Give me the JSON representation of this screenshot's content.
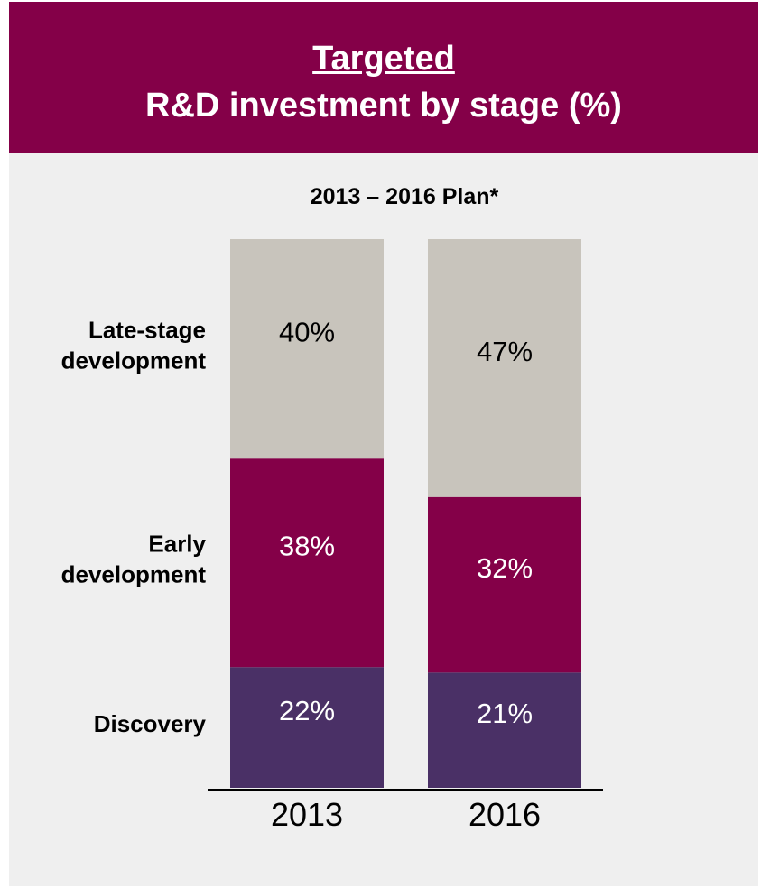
{
  "header": {
    "line1": "Targeted",
    "line2": "R&D investment by stage (%)"
  },
  "colors": {
    "banner": "#840048",
    "panel_background": "#efefef",
    "Discovery": "#4a3066",
    "Early development": "#840048",
    "Late-stage development": "#c8c4bc"
  },
  "chart_data": {
    "type": "bar",
    "stacked": true,
    "title": "2013 – 2016 Plan*",
    "categories": [
      "2013",
      "2016"
    ],
    "ylim": [
      0,
      100
    ],
    "series": [
      {
        "name": "Discovery",
        "label_lines": [
          "Discovery"
        ],
        "values": [
          22,
          21
        ],
        "labels": [
          "22%",
          "21%"
        ]
      },
      {
        "name": "Early development",
        "label_lines": [
          "Early",
          "development"
        ],
        "values": [
          38,
          32
        ],
        "labels": [
          "38%",
          "32%"
        ]
      },
      {
        "name": "Late-stage development",
        "label_lines": [
          "Late-stage",
          "development"
        ],
        "values": [
          40,
          47
        ],
        "labels": [
          "40%",
          "47%"
        ]
      }
    ]
  }
}
